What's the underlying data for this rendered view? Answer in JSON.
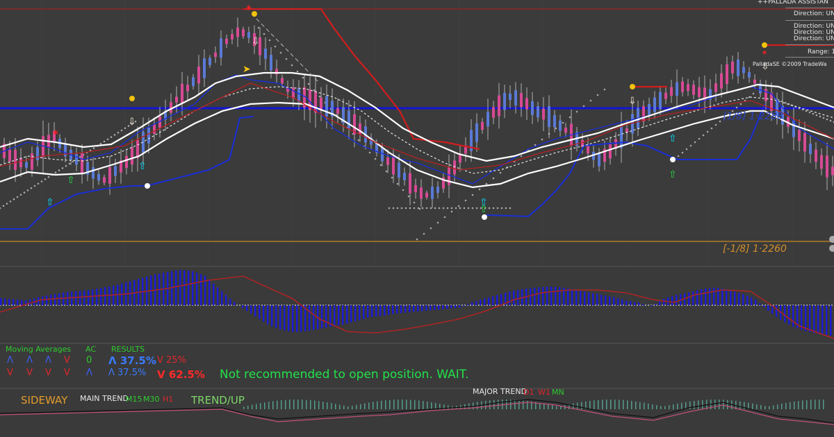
{
  "assistant": {
    "title": "++PALLADA ASSISTAN",
    "direction_1": "Direction: UN",
    "direction_2": "Direction: UN",
    "direction_3": "Direction: UN",
    "direction_4": "Direction: UN",
    "range": "Range: 1",
    "copyright": "PalladaSE ©2009 TradeWa"
  },
  "price_levels": {
    "lower_label": "[-1/8]   1·2260",
    "upper_label": "[1/8]   1·2288"
  },
  "indicator_panel": {
    "ma_header": "Moving Averages",
    "ac_header": "AC",
    "results_header": "RESULTS",
    "ma_row1": [
      "Λ",
      "Λ",
      "Λ",
      "V"
    ],
    "ma_row2": [
      "V",
      "V",
      "V",
      "V"
    ],
    "ac_row1": "0",
    "ac_row2": "Λ",
    "res_row1_bold": "Λ 37.5%",
    "res_row1_small": "V 25%",
    "res_row2_small": "Λ 37.5%",
    "res_row2_bold": "V 62.5%",
    "message": "Not recommended to open position. WAIT."
  },
  "trend_bar": {
    "sideway": "SIDEWAY",
    "main_trend": "MAIN TREND",
    "m15": "M15",
    "m30": "M30",
    "h1": "H1",
    "trend_up": "TREND/UP",
    "major_trend": "MAJOR TREND",
    "d1": "D1",
    "w1": "W1",
    "mn": "MN"
  },
  "colors": {
    "background": "#3a3a3a",
    "bull_candle": "#5a7ad6",
    "bear_candle": "#d64a94",
    "ma_white": "#ffffff",
    "channel_red": "#d21d1d",
    "channel_blue": "#1a2fd6",
    "histogram": "#1b1bd8",
    "signal": "#c22020",
    "level_blue": "#1414d6",
    "level_orange": "#c98a24"
  },
  "chart_data": {
    "type": "line",
    "series": [
      {
        "values": [
          34,
          30,
          28,
          35,
          40,
          34,
          30,
          26,
          22,
          26,
          30,
          36,
          42,
          48,
          55,
          60,
          66,
          72,
          78,
          82,
          80,
          74,
          66,
          58,
          56,
          54,
          52,
          50,
          46,
          42,
          36,
          30,
          26,
          20,
          16,
          18,
          24,
          32,
          40,
          46,
          52,
          56,
          54,
          50,
          48,
          44,
          40,
          36,
          30,
          34,
          40,
          46,
          50,
          54,
          58,
          60,
          58,
          56,
          62,
          68,
          66,
          60,
          54,
          48,
          42,
          36,
          30,
          26
        ]
      }
    ],
    "histogram_values": [
      12,
      10,
      8,
      14,
      18,
      22,
      24,
      26,
      30,
      34,
      40,
      46,
      52,
      56,
      60,
      58,
      50,
      30,
      10,
      -6,
      -20,
      -34,
      -42,
      -46,
      -44,
      -40,
      -36,
      -32,
      -26,
      -20,
      -18,
      -14,
      -12,
      -10,
      -8,
      -6,
      -4,
      6,
      12,
      18,
      24,
      28,
      30,
      32,
      30,
      26,
      22,
      18,
      14,
      8,
      4,
      -2,
      12,
      18,
      22,
      28,
      30,
      26,
      20,
      12,
      -8,
      -24,
      -36,
      -44,
      -48,
      -52
    ]
  }
}
